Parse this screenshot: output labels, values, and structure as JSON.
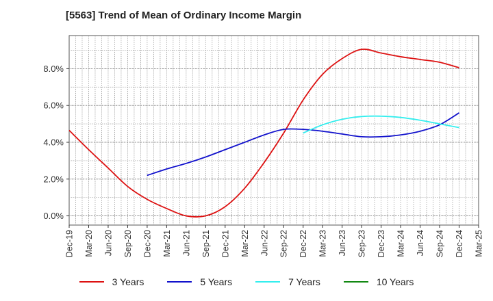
{
  "chart_data": {
    "type": "line",
    "title": "[5563]  Trend of Mean of Ordinary Income Margin",
    "xlabel": "",
    "ylabel": "",
    "x": [
      "Dec-19",
      "Mar-20",
      "Jun-20",
      "Sep-20",
      "Dec-20",
      "Mar-21",
      "Jun-21",
      "Sep-21",
      "Dec-21",
      "Mar-22",
      "Jun-22",
      "Sep-22",
      "Dec-22",
      "Mar-23",
      "Jun-23",
      "Sep-23",
      "Dec-23",
      "Mar-24",
      "Jun-24",
      "Sep-24",
      "Dec-24",
      "Mar-25"
    ],
    "ylim": [
      -0.5,
      9.8
    ],
    "yticks": [
      0.0,
      2.0,
      4.0,
      6.0,
      8.0
    ],
    "ytick_labels": [
      "0.0%",
      "2.0%",
      "4.0%",
      "6.0%",
      "8.0%"
    ],
    "grid": true,
    "legend_position": "bottom",
    "series": [
      {
        "name": "3 Years",
        "color": "#dd1111",
        "values": [
          4.65,
          3.6,
          2.6,
          1.6,
          0.9,
          0.4,
          0.0,
          0.0,
          0.5,
          1.5,
          2.9,
          4.5,
          6.3,
          7.7,
          8.55,
          9.05,
          8.85,
          8.65,
          8.5,
          8.35,
          8.05,
          null
        ]
      },
      {
        "name": "5 Years",
        "color": "#1111cc",
        "values": [
          null,
          null,
          null,
          null,
          2.2,
          2.55,
          2.85,
          3.2,
          3.6,
          4.0,
          4.4,
          4.7,
          4.7,
          4.6,
          4.45,
          4.3,
          4.3,
          4.4,
          4.6,
          4.95,
          5.6,
          null
        ]
      },
      {
        "name": "7 Years",
        "color": "#33eeee",
        "values": [
          null,
          null,
          null,
          null,
          null,
          null,
          null,
          null,
          null,
          null,
          null,
          null,
          4.5,
          4.95,
          5.25,
          5.4,
          5.42,
          5.35,
          5.2,
          5.0,
          4.8,
          null
        ]
      },
      {
        "name": "10 Years",
        "color": "#118811",
        "values": [
          null,
          null,
          null,
          null,
          null,
          null,
          null,
          null,
          null,
          null,
          null,
          null,
          null,
          null,
          null,
          null,
          null,
          null,
          null,
          null,
          null,
          null
        ]
      }
    ]
  }
}
